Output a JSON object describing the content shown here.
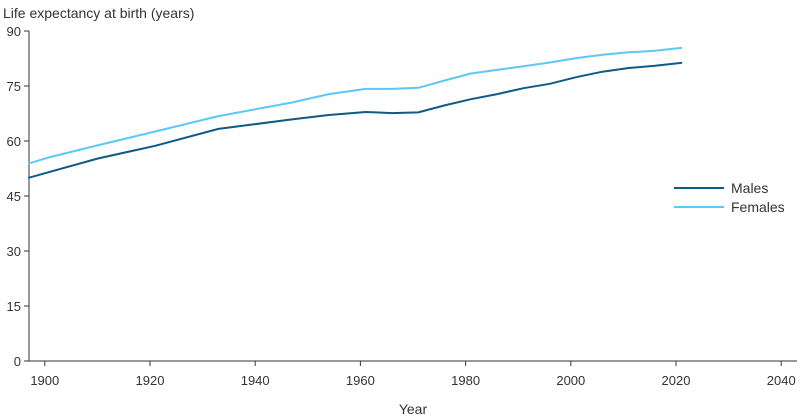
{
  "chart_data": {
    "type": "line",
    "ylabel": "Life expectancy at birth (years)",
    "xlabel": "Year",
    "xlim": [
      1897,
      2043
    ],
    "ylim": [
      0,
      90
    ],
    "xticks": [
      1900,
      1920,
      1940,
      1960,
      1980,
      2000,
      2020,
      2040
    ],
    "yticks": [
      0,
      15,
      30,
      45,
      60,
      75,
      90
    ],
    "grid": false,
    "legend_position": "right",
    "series": [
      {
        "name": "Males",
        "color": "#0f5a86",
        "x": [
          1897,
          1901,
          1910,
          1921,
          1933,
          1947,
          1954,
          1961,
          1966,
          1971,
          1976,
          1981,
          1986,
          1991,
          1996,
          2001,
          2006,
          2011,
          2016,
          2021
        ],
        "y": [
          50.0,
          51.6,
          55.2,
          58.7,
          63.3,
          65.9,
          67.1,
          67.9,
          67.6,
          67.8,
          69.7,
          71.4,
          72.8,
          74.4,
          75.6,
          77.4,
          78.9,
          79.9,
          80.5,
          81.3
        ]
      },
      {
        "name": "Females",
        "color": "#5bc8f5",
        "x": [
          1897,
          1901,
          1910,
          1921,
          1933,
          1947,
          1954,
          1961,
          1966,
          1971,
          1976,
          1981,
          1986,
          1991,
          1996,
          2001,
          2006,
          2011,
          2016,
          2021
        ],
        "y": [
          53.9,
          55.6,
          58.8,
          62.6,
          66.8,
          70.5,
          72.8,
          74.2,
          74.2,
          74.5,
          76.5,
          78.4,
          79.4,
          80.4,
          81.4,
          82.6,
          83.5,
          84.2,
          84.6,
          85.4
        ]
      }
    ]
  }
}
